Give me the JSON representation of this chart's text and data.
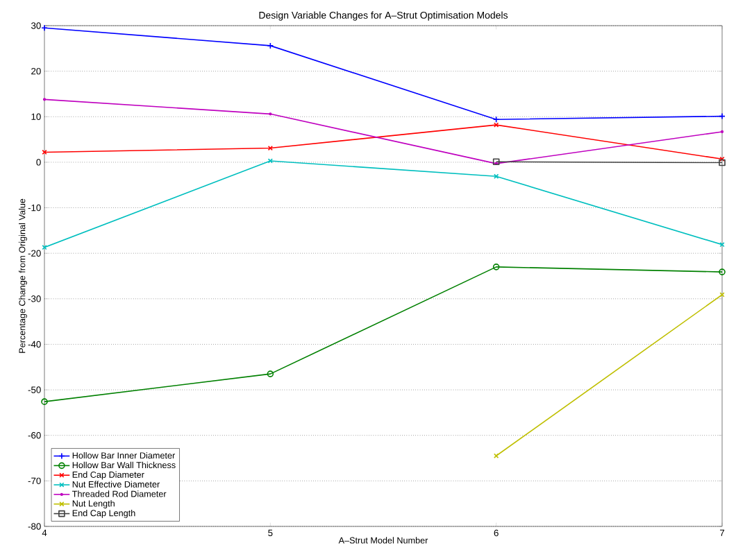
{
  "chart_data": {
    "type": "line",
    "title": "Design Variable Changes for A–Strut Optimisation Models",
    "xlabel": "A–Strut Model Number",
    "ylabel": "Percentage Change from Original Value",
    "x": [
      4,
      5,
      6,
      7
    ],
    "xlim": [
      4,
      7
    ],
    "xticks": [
      4,
      5,
      6,
      7
    ],
    "ylim": [
      -80,
      30
    ],
    "yticks": [
      -80,
      -70,
      -60,
      -50,
      -40,
      -30,
      -20,
      -10,
      0,
      10,
      20,
      30
    ],
    "grid": "y",
    "legend": "bottom left",
    "line_style": "solid",
    "series": [
      {
        "name": "Hollow Bar Inner Diameter",
        "color": "#0000ff",
        "marker": "plus",
        "values": [
          29.5,
          25.6,
          9.4,
          10.1
        ]
      },
      {
        "name": "Hollow Bar Wall Thickness",
        "color": "#008000",
        "marker": "circle",
        "values": [
          -52.6,
          -46.5,
          -23.0,
          -24.1
        ]
      },
      {
        "name": "End Cap Diameter",
        "color": "#ff0000",
        "marker": "cross",
        "values": [
          2.2,
          3.1,
          8.2,
          0.7
        ]
      },
      {
        "name": "Nut Effective Diameter",
        "color": "#00bfbf",
        "marker": "cross",
        "values": [
          -18.7,
          0.3,
          -3.1,
          -18.1
        ]
      },
      {
        "name": "Threaded Rod Diameter",
        "color": "#bf00bf",
        "marker": "none",
        "values": [
          13.8,
          10.6,
          -0.3,
          6.7
        ]
      },
      {
        "name": "Nut Length",
        "color": "#bfbf00",
        "marker": "cross",
        "values": [
          null,
          null,
          -64.5,
          -29.1
        ]
      },
      {
        "name": "End Cap Length",
        "color": "#404040",
        "marker": "square",
        "values": [
          null,
          null,
          0.1,
          -0.1
        ]
      }
    ]
  }
}
